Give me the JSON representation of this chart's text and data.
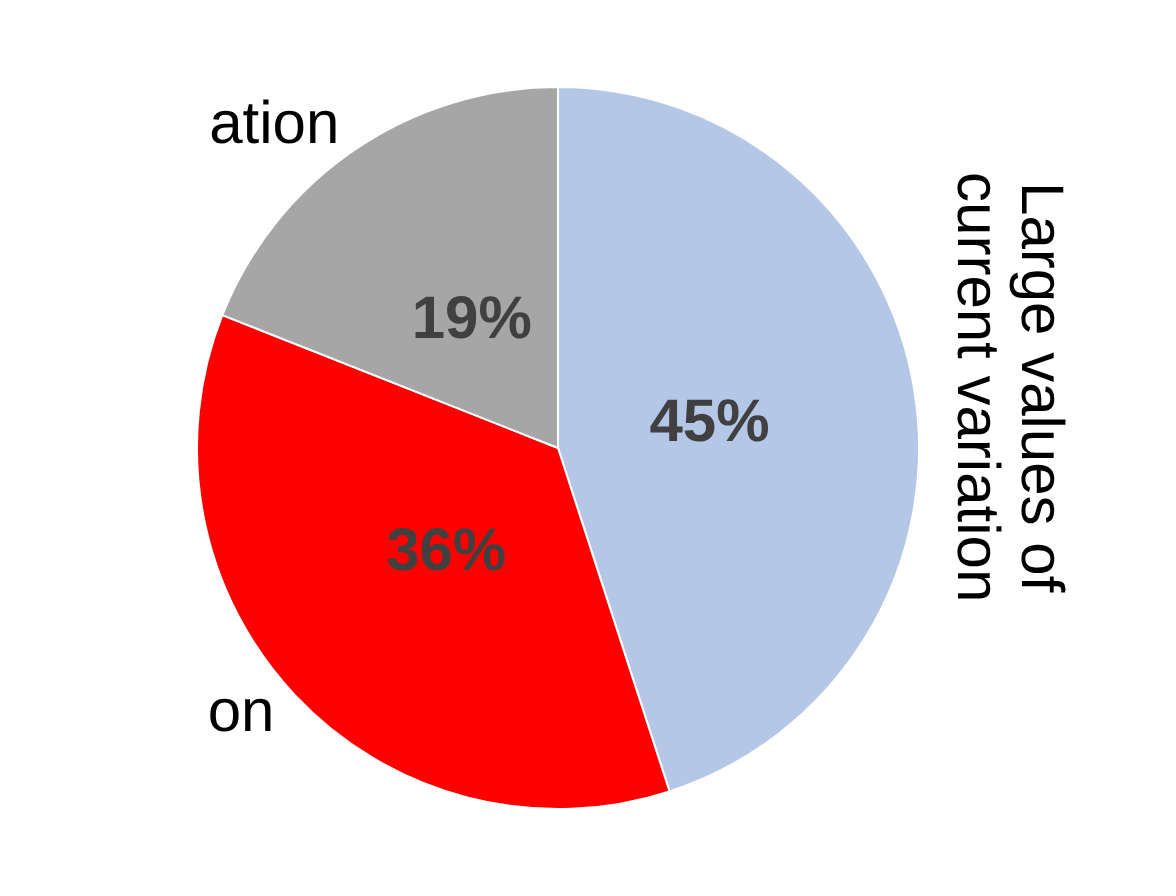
{
  "chart_data": {
    "type": "pie",
    "categories": [
      "Large values of current variation",
      "on",
      "ation"
    ],
    "values": [
      45,
      36,
      19
    ],
    "colors": [
      "#b4c7e7",
      "#ff0000",
      "#a6a6a6"
    ],
    "value_labels": [
      "45%",
      "36%",
      "19%"
    ],
    "legend": false
  }
}
